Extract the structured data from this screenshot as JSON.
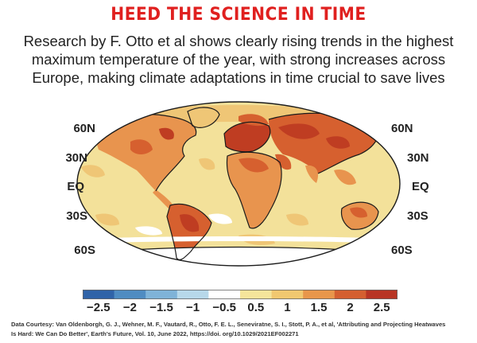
{
  "title": "HEED THE SCIENCE IN TIME",
  "subtitle_lines": [
    "Research by F. Otto et al shows clearly rising trends in the highest",
    "maximum temperature of the year, with strong increases across",
    "Europe, making climate adaptations in time crucial to save lives"
  ],
  "latitude_labels": {
    "left": [
      "60N",
      "30N",
      "EQ",
      "30S",
      "60S"
    ],
    "right": [
      "60N",
      "30N",
      "EQ",
      "30S",
      "60S"
    ]
  },
  "colorbar": {
    "ticks": [
      "−2.5",
      "−2",
      "−1.5",
      "−1",
      "−0.5",
      "0.5",
      "1",
      "1.5",
      "2",
      "2.5"
    ],
    "colors": [
      "#2f63a8",
      "#4f8cc2",
      "#7fb3d8",
      "#b7d8ea",
      "#ffffff",
      "#f5e59b",
      "#f1c870",
      "#e8964b",
      "#d45f30",
      "#b83424"
    ]
  },
  "map_colors": {
    "ocean_base": "#f3e19a",
    "light": "#efc676",
    "medium": "#e8944e",
    "strong": "#d6602f",
    "very_strong": "#bf3d22",
    "ice": "#ffffff",
    "coast": "#1b1b1b"
  },
  "credit_lines": [
    "Data Courtesy: Van Oldenborgh, G. J., Wehner, M. F., Vautard, R., Otto, F. E. L., Seneviratne, S. I., Stott, P. A., et al, 'Attributing and Projecting Heatwaves",
    "Is Hard: We Can Do Better', Earth's Future, Vol. 10, June 2022, https://doi. org/10.1029/2021EF002271"
  ]
}
